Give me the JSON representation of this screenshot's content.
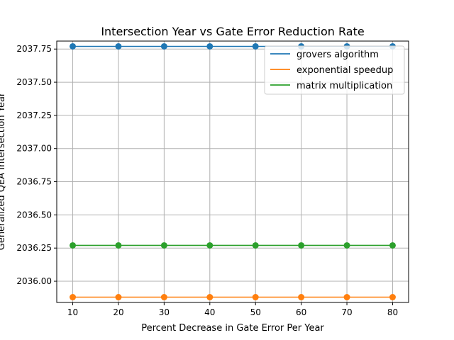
{
  "chart_data": {
    "type": "line",
    "title": "Intersection Year vs Gate Error Reduction Rate",
    "xlabel": "Percent Decrease in Gate Error Per Year",
    "ylabel": "Generalized QEA Intersection Year",
    "x": [
      10,
      20,
      30,
      40,
      50,
      60,
      70,
      80
    ],
    "xticks": [
      10,
      20,
      30,
      40,
      50,
      60,
      70,
      80
    ],
    "xlim": [
      6.5,
      83.5
    ],
    "ylim": [
      2035.84,
      2037.81
    ],
    "yticks": [
      2036.0,
      2036.25,
      2036.5,
      2036.75,
      2037.0,
      2037.25,
      2037.5,
      2037.75
    ],
    "ytick_labels": [
      "2036.00",
      "2036.25",
      "2036.50",
      "2036.75",
      "2037.00",
      "2037.25",
      "2037.50",
      "2037.75"
    ],
    "grid": true,
    "legend_position": "top-right",
    "series": [
      {
        "name": "grovers algorithm",
        "color": "#1f77b4",
        "values": [
          2037.77,
          2037.77,
          2037.77,
          2037.77,
          2037.77,
          2037.77,
          2037.77,
          2037.77
        ]
      },
      {
        "name": "exponential speedup",
        "color": "#ff7f0e",
        "values": [
          2035.88,
          2035.88,
          2035.88,
          2035.88,
          2035.88,
          2035.88,
          2035.88,
          2035.88
        ]
      },
      {
        "name": "matrix multiplication",
        "color": "#2ca02c",
        "values": [
          2036.27,
          2036.27,
          2036.27,
          2036.27,
          2036.27,
          2036.27,
          2036.27,
          2036.27
        ]
      }
    ]
  }
}
